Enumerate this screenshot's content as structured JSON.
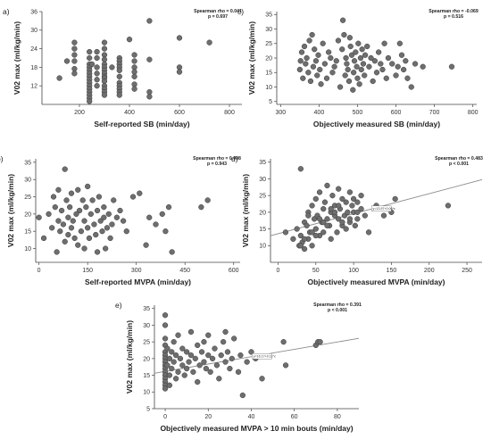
{
  "chart_data": [
    {
      "panel": "a)",
      "type": "scatter",
      "xlabel": "Self-reported SB (min/day)",
      "ylabel": "V02 max (ml/kg/min)",
      "xlim": [
        50,
        850
      ],
      "ylim": [
        6,
        36
      ],
      "xticks": [
        200,
        400,
        600,
        800
      ],
      "yticks": [
        12,
        18,
        24,
        30,
        36
      ],
      "xtick_labels": [
        "200",
        "400",
        "600",
        "800"
      ],
      "ytick_labels": [
        "12",
        "18",
        "24",
        "30",
        "36"
      ],
      "annotation": [
        "Spearman rho =  0.041",
        "p = 0.697"
      ],
      "x": [
        120,
        150,
        180,
        180,
        180,
        180,
        180,
        180,
        240,
        240,
        240,
        240,
        240,
        240,
        240,
        240,
        240,
        240,
        240,
        240,
        240,
        240,
        240,
        250,
        270,
        270,
        270,
        270,
        270,
        270,
        300,
        300,
        300,
        300,
        300,
        300,
        300,
        300,
        300,
        300,
        300,
        300,
        300,
        300,
        300,
        330,
        360,
        360,
        360,
        360,
        360,
        360,
        360,
        360,
        360,
        360,
        360,
        400,
        420,
        420,
        420,
        420,
        420,
        420,
        420,
        480,
        480,
        480,
        480,
        600,
        600,
        600,
        720
      ],
      "y": [
        14.5,
        20,
        26,
        24,
        22,
        20,
        17.5,
        16,
        23,
        21,
        19,
        18,
        17,
        16,
        15,
        14,
        13,
        12,
        11,
        10,
        9,
        8,
        7,
        19,
        23,
        21,
        18,
        16,
        14,
        12,
        26,
        24,
        22,
        20.5,
        19,
        18,
        17,
        16,
        15,
        14.5,
        13.5,
        12,
        11,
        10,
        9,
        18,
        21,
        20,
        19,
        18,
        17,
        15,
        13,
        12,
        11,
        10,
        9,
        27,
        22,
        20,
        18,
        16.5,
        15,
        12.5,
        11,
        33,
        20.5,
        10,
        8.5,
        27.5,
        18,
        16.5,
        26
      ]
    },
    {
      "panel": "c)",
      "type": "scatter",
      "xlabel": "Objectively measured SB (min/day)",
      "ylabel": "V02 max (ml/kg/min)",
      "xlim": [
        290,
        810
      ],
      "ylim": [
        4,
        36
      ],
      "xticks": [
        300,
        400,
        500,
        600,
        700,
        800
      ],
      "yticks": [
        5,
        10,
        15,
        20,
        25,
        30,
        35
      ],
      "xtick_labels": [
        "300",
        "400",
        "500",
        "600",
        "700",
        "800"
      ],
      "ytick_labels": [
        "5",
        "10",
        "15",
        "20",
        "25",
        "30",
        "35"
      ],
      "annotation": [
        "Spearman rho =  -0.069",
        "p = 0.516"
      ],
      "x": [
        350,
        352,
        355,
        358,
        362,
        365,
        368,
        372,
        375,
        378,
        382,
        385,
        388,
        392,
        395,
        398,
        402,
        405,
        410,
        415,
        420,
        425,
        430,
        435,
        440,
        445,
        450,
        455,
        460,
        462,
        465,
        468,
        470,
        472,
        475,
        478,
        480,
        482,
        485,
        488,
        490,
        492,
        495,
        498,
        500,
        502,
        505,
        508,
        510,
        512,
        515,
        518,
        520,
        525,
        530,
        535,
        540,
        545,
        550,
        555,
        560,
        565,
        570,
        575,
        580,
        590,
        600,
        605,
        610,
        615,
        620,
        625,
        630,
        640,
        650,
        670,
        745
      ],
      "y": [
        16,
        19,
        22,
        13,
        24,
        18,
        20,
        15,
        26,
        12,
        28,
        17,
        23,
        19,
        14,
        21,
        16,
        11,
        25,
        18,
        13,
        22,
        20,
        15,
        17,
        19,
        26,
        10,
        23,
        33,
        28,
        14,
        20,
        18,
        16,
        12,
        27,
        24,
        21,
        9,
        15,
        19,
        22,
        17,
        13,
        25,
        11,
        20,
        16,
        23,
        18,
        14,
        21,
        24,
        17,
        20,
        12,
        19,
        15,
        22,
        18,
        16,
        25,
        13,
        20,
        18,
        14,
        17,
        25,
        21,
        16,
        19,
        13,
        10,
        18,
        17,
        17
      ]
    },
    {
      "panel": "b)",
      "type": "scatter",
      "xlabel": "Self-reported MVPA (min/day)",
      "ylabel": "V02 max (ml/kg/min)",
      "xlim": [
        -10,
        620
      ],
      "ylim": [
        6,
        36
      ],
      "xticks": [
        0,
        150,
        300,
        450,
        600
      ],
      "yticks": [
        10,
        15,
        20,
        25,
        30,
        35
      ],
      "xtick_labels": [
        "0",
        "150",
        "300",
        "450",
        "600"
      ],
      "ytick_labels": [
        "10",
        "15",
        "20",
        "25",
        "30",
        "35"
      ],
      "annotation": [
        "Spearman rho =  0.008",
        "p = 0.943"
      ],
      "x": [
        0,
        15,
        30,
        40,
        45,
        50,
        55,
        60,
        60,
        65,
        70,
        75,
        80,
        80,
        85,
        90,
        90,
        95,
        100,
        100,
        105,
        110,
        115,
        120,
        120,
        125,
        130,
        135,
        140,
        140,
        145,
        150,
        150,
        155,
        160,
        165,
        170,
        175,
        180,
        180,
        185,
        190,
        195,
        200,
        200,
        205,
        210,
        215,
        220,
        225,
        230,
        240,
        250,
        260,
        270,
        290,
        310,
        330,
        340,
        360,
        380,
        390,
        400,
        410,
        500,
        520
      ],
      "y": [
        19,
        13,
        20,
        16,
        25,
        22,
        9,
        18,
        27,
        15,
        21,
        17,
        12,
        33,
        24,
        19,
        14,
        22,
        16,
        26,
        18,
        13,
        20,
        27,
        11,
        21,
        15,
        24,
        18,
        10,
        22,
        16,
        28,
        13,
        20,
        24,
        17,
        14,
        21,
        9,
        25,
        18,
        15,
        19,
        22,
        10,
        16,
        20,
        13,
        17,
        24,
        19,
        21,
        18,
        15,
        25,
        26,
        11,
        19,
        17,
        20,
        15,
        22,
        9,
        22,
        24
      ]
    },
    {
      "panel": "d)",
      "type": "scatter",
      "xlabel": "Objectively measured MVPA (min/day)",
      "ylabel": "V02 max (ml/kg/min)",
      "xlim": [
        -10,
        270
      ],
      "ylim": [
        5,
        36
      ],
      "xticks": [
        0,
        50,
        100,
        150,
        200,
        250
      ],
      "yticks": [
        10,
        15,
        20,
        25,
        30,
        35
      ],
      "xtick_labels": [
        "0",
        "50",
        "100",
        "150",
        "200",
        "250"
      ],
      "ytick_labels": [
        "10",
        "15",
        "20",
        "25",
        "30",
        "35"
      ],
      "annotation": [
        "Spearman rho =  0.483",
        "p < 0.001"
      ],
      "fit_line": {
        "intercept": 13.57,
        "slope": 0.06,
        "label": "y=13.57+0.06*x"
      },
      "x": [
        10,
        20,
        25,
        28,
        30,
        30,
        32,
        35,
        35,
        38,
        40,
        40,
        42,
        45,
        45,
        48,
        50,
        50,
        52,
        55,
        55,
        58,
        60,
        60,
        62,
        65,
        65,
        68,
        70,
        70,
        72,
        75,
        75,
        78,
        80,
        80,
        82,
        85,
        85,
        88,
        90,
        90,
        92,
        95,
        95,
        98,
        100,
        100,
        102,
        105,
        105,
        110,
        110,
        115,
        120,
        130,
        140,
        150,
        155,
        225,
        35,
        45,
        55,
        65,
        75,
        85,
        30,
        50,
        70,
        40,
        60,
        80,
        95,
        105
      ],
      "y": [
        14,
        12,
        15,
        10,
        13,
        33,
        11,
        17,
        9,
        16,
        20,
        12,
        14,
        22,
        10,
        18,
        15,
        24,
        19,
        13,
        26,
        17,
        21,
        14,
        23,
        18,
        28,
        16,
        20,
        12,
        25,
        19,
        22,
        14,
        27,
        18,
        21,
        16,
        24,
        19,
        23,
        15,
        20,
        26,
        17,
        22,
        24,
        20,
        16,
        23,
        18,
        21,
        25,
        19,
        14,
        22,
        19,
        20,
        24,
        22,
        12,
        14,
        18,
        16,
        20,
        17,
        10,
        13,
        21,
        19,
        17,
        22,
        18,
        20
      ]
    },
    {
      "panel": "e)",
      "type": "scatter",
      "xlabel": "Objectively measured MVPA  > 10 min bouts (min/day)",
      "ylabel": "V02 max (ml/kg/min)",
      "xlim": [
        -5,
        90
      ],
      "ylim": [
        5,
        36
      ],
      "xticks": [
        0,
        20,
        40,
        60,
        80
      ],
      "yticks": [
        5,
        10,
        15,
        20,
        25,
        30,
        35
      ],
      "xtick_labels": [
        "0",
        "20",
        "40",
        "60",
        "80"
      ],
      "ytick_labels": [
        "5",
        "10",
        "15",
        "20",
        "25",
        "30",
        "35"
      ],
      "annotation": [
        "Spearman rho =  0.391",
        "p < 0.001"
      ],
      "fit_line": {
        "intercept": 16.17,
        "slope": 0.11,
        "label": "y=16.17+0.11*x"
      },
      "x": [
        0,
        0,
        0,
        0,
        0,
        0,
        0,
        0,
        0,
        0,
        0,
        0,
        0,
        0,
        0,
        0,
        1,
        1,
        2,
        2,
        2,
        3,
        3,
        4,
        4,
        5,
        5,
        6,
        6,
        7,
        8,
        8,
        9,
        10,
        10,
        11,
        12,
        12,
        13,
        14,
        15,
        15,
        16,
        17,
        18,
        18,
        19,
        20,
        20,
        21,
        22,
        23,
        24,
        25,
        26,
        27,
        28,
        28,
        29,
        30,
        31,
        32,
        34,
        35,
        36,
        38,
        40,
        42,
        45,
        55,
        56,
        70,
        71,
        72
      ],
      "y": [
        33,
        30,
        26,
        24,
        22,
        21,
        20,
        19,
        18,
        17,
        16,
        15,
        14,
        13,
        12,
        11,
        23,
        18,
        20,
        15,
        12,
        22,
        17,
        25,
        19,
        14,
        21,
        16,
        27,
        20,
        18,
        23,
        15,
        22,
        17,
        19,
        21,
        28,
        16,
        20,
        24,
        13,
        18,
        22,
        19,
        25,
        17,
        21,
        27,
        16,
        20,
        23,
        18,
        14,
        21,
        25,
        19,
        28,
        22,
        17,
        20,
        26,
        16,
        21,
        9,
        19,
        22,
        20,
        14,
        25,
        18,
        24,
        25,
        25
      ]
    }
  ]
}
